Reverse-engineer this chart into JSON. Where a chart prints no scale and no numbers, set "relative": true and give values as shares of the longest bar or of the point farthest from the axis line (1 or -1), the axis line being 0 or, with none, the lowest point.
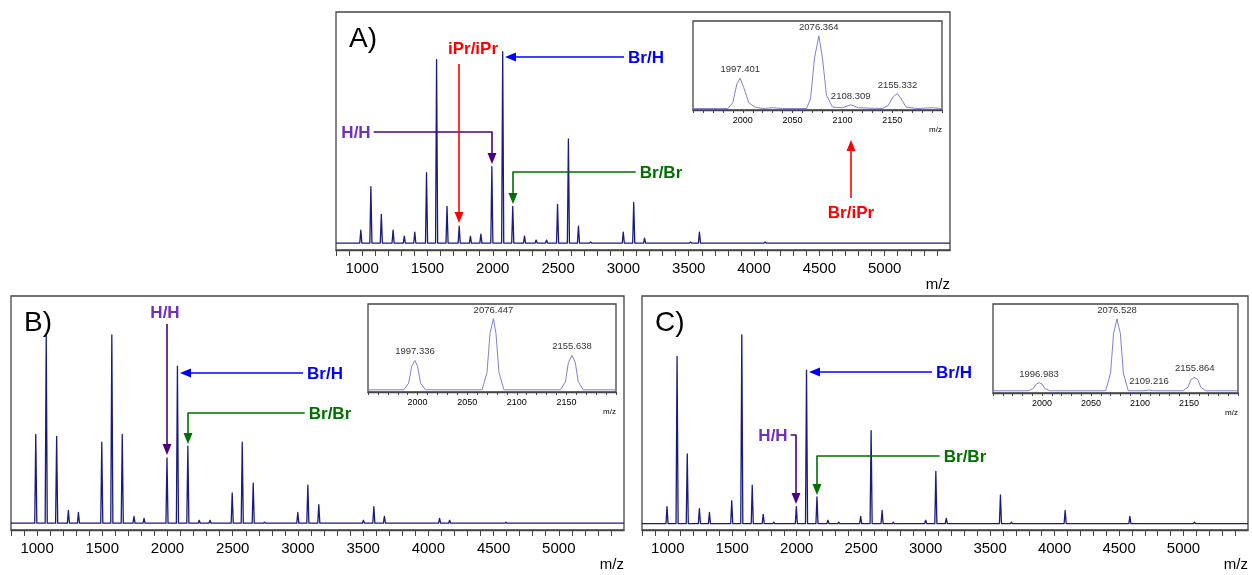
{
  "chart_data": [
    {
      "type": "line",
      "title": "A)",
      "xlabel": "m/z",
      "relative": true,
      "color": "#1a1a80",
      "xlim": [
        800,
        5500
      ],
      "xticks": [
        {
          "value": 800,
          "label": null
        },
        {
          "value": 900,
          "label": null
        },
        1000,
        {
          "value": 1100,
          "label": null
        },
        {
          "value": 1200,
          "label": null
        },
        {
          "value": 1300,
          "label": null
        },
        {
          "value": 1400,
          "label": null
        },
        1500,
        {
          "value": 1600,
          "label": null
        },
        {
          "value": 1700,
          "label": null
        },
        {
          "value": 1800,
          "label": null
        },
        {
          "value": 1900,
          "label": null
        },
        2000,
        {
          "value": 2100,
          "label": null
        },
        {
          "value": 2200,
          "label": null
        },
        {
          "value": 2300,
          "label": null
        },
        {
          "value": 2400,
          "label": null
        },
        2500,
        {
          "value": 2600,
          "label": null
        },
        {
          "value": 2700,
          "label": null
        },
        {
          "value": 2800,
          "label": null
        },
        {
          "value": 2900,
          "label": null
        },
        3000,
        {
          "value": 3100,
          "label": null
        },
        {
          "value": 3200,
          "label": null
        },
        {
          "value": 3300,
          "label": null
        },
        {
          "value": 3400,
          "label": null
        },
        3500,
        {
          "value": 3600,
          "label": null
        },
        {
          "value": 3700,
          "label": null
        },
        {
          "value": 3800,
          "label": null
        },
        {
          "value": 3900,
          "label": null
        },
        4000,
        {
          "value": 4100,
          "label": null
        },
        {
          "value": 4200,
          "label": null
        },
        {
          "value": 4300,
          "label": null
        },
        {
          "value": 4400,
          "label": null
        },
        4500,
        {
          "value": 4600,
          "label": null
        },
        {
          "value": 4700,
          "label": null
        },
        {
          "value": 4800,
          "label": null
        },
        {
          "value": 4900,
          "label": null
        },
        5000,
        {
          "value": 5100,
          "label": null
        },
        {
          "value": 5200,
          "label": null
        },
        {
          "value": 5300,
          "label": null
        },
        {
          "value": 5400,
          "label": null
        }
      ],
      "x": [
        800,
        982,
        990,
        998,
        1059,
        1067,
        1075,
        1139,
        1147,
        1155,
        1229,
        1237,
        1245,
        1315,
        1323,
        1331,
        1395,
        1403,
        1411,
        1485,
        1493,
        1501,
        1562,
        1570,
        1578,
        1642,
        1650,
        1658,
        1735,
        1743,
        1751,
        1821,
        1829,
        1837,
        1901,
        1909,
        1917,
        1985,
        1993,
        2001,
        2068,
        2076,
        2084,
        2145,
        2153,
        2161,
        2235,
        2243,
        2251,
        2324,
        2332,
        2340,
        2404,
        2412,
        2420,
        2488,
        2496,
        2504,
        2571,
        2579,
        2587,
        2648,
        2656,
        2664,
        2741,
        2749,
        2757,
        2991,
        2999,
        3007,
        3071,
        3079,
        3087,
        3154,
        3162,
        3170,
        3506,
        3514,
        3522,
        3574,
        3582,
        3590,
        4077,
        4085,
        4093,
        5500
      ],
      "values": [
        0.035,
        0.035,
        0.1,
        0.035,
        0.035,
        0.32,
        0.035,
        0.035,
        0.18,
        0.035,
        0.035,
        0.1,
        0.035,
        0.035,
        0.07,
        0.035,
        0.035,
        0.09,
        0.035,
        0.035,
        0.39,
        0.035,
        0.035,
        0.96,
        0.035,
        0.035,
        0.22,
        0.035,
        0.035,
        0.12,
        0.035,
        0.035,
        0.07,
        0.035,
        0.035,
        0.08,
        0.035,
        0.035,
        0.42,
        0.035,
        0.035,
        1,
        0.035,
        0.035,
        0.22,
        0.035,
        0.035,
        0.07,
        0.035,
        0.035,
        0.05,
        0.035,
        0.035,
        0.05,
        0.035,
        0.035,
        0.23,
        0.035,
        0.035,
        0.56,
        0.035,
        0.035,
        0.12,
        0.035,
        0.035,
        0.04,
        0.035,
        0.035,
        0.09,
        0.035,
        0.035,
        0.24,
        0.035,
        0.035,
        0.06,
        0.035,
        0.035,
        0.04,
        0.035,
        0.035,
        0.09,
        0.035,
        0.035,
        0.04,
        0.035,
        0.035
      ],
      "annotations": [
        "Br/H",
        "H/H",
        "iPr/iPr",
        "Br/Br"
      ]
    },
    {
      "type": "line",
      "xlabel": "m/z",
      "relative": true,
      "color": "#8080d0",
      "xlim": [
        1950,
        2200
      ],
      "xticks": [
        {
          "value": 1950,
          "label": null
        },
        {
          "value": 1960,
          "label": null
        },
        {
          "value": 1970,
          "label": null
        },
        {
          "value": 1980,
          "label": null
        },
        {
          "value": 1990,
          "label": null
        },
        2000,
        {
          "value": 2010,
          "label": null
        },
        {
          "value": 2020,
          "label": null
        },
        {
          "value": 2030,
          "label": null
        },
        {
          "value": 2040,
          "label": null
        },
        2050,
        {
          "value": 2060,
          "label": null
        },
        {
          "value": 2070,
          "label": null
        },
        {
          "value": 2080,
          "label": null
        },
        {
          "value": 2090,
          "label": null
        },
        2100,
        {
          "value": 2110,
          "label": null
        },
        {
          "value": 2120,
          "label": null
        },
        {
          "value": 2130,
          "label": null
        },
        {
          "value": 2140,
          "label": null
        },
        2150,
        {
          "value": 2160,
          "label": null
        },
        {
          "value": 2170,
          "label": null
        },
        {
          "value": 2180,
          "label": null
        },
        {
          "value": 2190,
          "label": null
        },
        {
          "value": 2200,
          "label": null
        }
      ],
      "x": [
        1950,
        1985,
        1990,
        1994,
        1997.401,
        2001,
        2006,
        2012,
        2020,
        2030,
        2040,
        2064,
        2068,
        2072,
        2076.364,
        2080,
        2084,
        2090,
        2100,
        2108.309,
        2116,
        2140,
        2146,
        2151,
        2155.332,
        2159,
        2164,
        2175,
        2190,
        2200
      ],
      "values": [
        0.02,
        0.02,
        0.1,
        0.35,
        0.43,
        0.3,
        0.1,
        0.04,
        0.02,
        0.03,
        0.02,
        0.02,
        0.15,
        0.7,
        1,
        0.7,
        0.2,
        0.04,
        0.03,
        0.07,
        0.03,
        0.02,
        0.06,
        0.18,
        0.22,
        0.15,
        0.04,
        0.02,
        0.03,
        0.02
      ],
      "annotations": [
        {
          "text": "1997.401",
          "x": 1997.401,
          "y": 0.43
        },
        {
          "text": "2076.364",
          "x": 2076.364,
          "y": 1
        },
        {
          "text": "2108.309",
          "x": 2108.309,
          "y": 0.07
        },
        {
          "text": "2155.332",
          "x": 2155.332,
          "y": 0.22
        },
        "Br/iPr"
      ]
    },
    {
      "type": "line",
      "title": "B)",
      "xlabel": "m/z",
      "relative": true,
      "color": "#1a1a80",
      "xlim": [
        800,
        5500
      ],
      "xticks": [
        {
          "value": 800,
          "label": null
        },
        {
          "value": 900,
          "label": null
        },
        1000,
        {
          "value": 1100,
          "label": null
        },
        {
          "value": 1200,
          "label": null
        },
        {
          "value": 1300,
          "label": null
        },
        {
          "value": 1400,
          "label": null
        },
        1500,
        {
          "value": 1600,
          "label": null
        },
        {
          "value": 1700,
          "label": null
        },
        {
          "value": 1800,
          "label": null
        },
        {
          "value": 1900,
          "label": null
        },
        2000,
        {
          "value": 2100,
          "label": null
        },
        {
          "value": 2200,
          "label": null
        },
        {
          "value": 2300,
          "label": null
        },
        {
          "value": 2400,
          "label": null
        },
        2500,
        {
          "value": 2600,
          "label": null
        },
        {
          "value": 2700,
          "label": null
        },
        {
          "value": 2800,
          "label": null
        },
        {
          "value": 2900,
          "label": null
        },
        3000,
        {
          "value": 3100,
          "label": null
        },
        {
          "value": 3200,
          "label": null
        },
        {
          "value": 3300,
          "label": null
        },
        {
          "value": 3400,
          "label": null
        },
        3500,
        {
          "value": 3600,
          "label": null
        },
        {
          "value": 3700,
          "label": null
        },
        {
          "value": 3800,
          "label": null
        },
        {
          "value": 3900,
          "label": null
        },
        4000,
        {
          "value": 4100,
          "label": null
        },
        {
          "value": 4200,
          "label": null
        },
        {
          "value": 4300,
          "label": null
        },
        {
          "value": 4400,
          "label": null
        },
        4500,
        {
          "value": 4600,
          "label": null
        },
        {
          "value": 4700,
          "label": null
        },
        {
          "value": 4800,
          "label": null
        },
        {
          "value": 4900,
          "label": null
        },
        5000,
        {
          "value": 5100,
          "label": null
        },
        {
          "value": 5200,
          "label": null
        },
        {
          "value": 5300,
          "label": null
        },
        {
          "value": 5400,
          "label": null
        }
      ],
      "x": [
        800,
        982,
        990,
        998,
        1062,
        1070,
        1078,
        1142,
        1150,
        1158,
        1232,
        1240,
        1248,
        1309,
        1317,
        1325,
        1488,
        1496,
        1504,
        1565,
        1573,
        1581,
        1645,
        1653,
        1661,
        1735,
        1743,
        1751,
        1812,
        1820,
        1828,
        1988,
        1996,
        2004,
        2068,
        2076,
        2084,
        2148,
        2156,
        2164,
        2235,
        2243,
        2251,
        2318,
        2326,
        2334,
        2488,
        2496,
        2504,
        2565,
        2573,
        2581,
        2649,
        2657,
        2665,
        2735,
        2743,
        2751,
        2991,
        2999,
        3007,
        3068,
        3076,
        3084,
        3152,
        3160,
        3168,
        3494,
        3502,
        3510,
        3574,
        3582,
        3590,
        3655,
        3663,
        3671,
        4078,
        4086,
        4094,
        4155,
        4163,
        4171,
        4587,
        4595,
        4603,
        5500
      ],
      "values": [
        0.035,
        0.035,
        0.49,
        0.035,
        0.035,
        1,
        0.035,
        0.035,
        0.48,
        0.035,
        0.035,
        0.1,
        0.035,
        0.035,
        0.09,
        0.035,
        0.035,
        0.45,
        0.035,
        0.035,
        1,
        0.035,
        0.035,
        0.49,
        0.035,
        0.035,
        0.07,
        0.035,
        0.035,
        0.06,
        0.035,
        0.035,
        0.37,
        0.035,
        0.035,
        0.84,
        0.035,
        0.035,
        0.43,
        0.035,
        0.035,
        0.05,
        0.035,
        0.035,
        0.05,
        0.035,
        0.035,
        0.19,
        0.035,
        0.035,
        0.45,
        0.035,
        0.035,
        0.24,
        0.035,
        0.035,
        0.04,
        0.035,
        0.035,
        0.09,
        0.035,
        0.035,
        0.23,
        0.035,
        0.035,
        0.13,
        0.035,
        0.035,
        0.05,
        0.035,
        0.035,
        0.12,
        0.035,
        0.035,
        0.07,
        0.035,
        0.035,
        0.06,
        0.035,
        0.035,
        0.05,
        0.035,
        0.035,
        0.04,
        0.035,
        0.035
      ],
      "annotations": [
        "H/H",
        "Br/H",
        "Br/Br"
      ]
    },
    {
      "type": "line",
      "xlabel": "m/z",
      "relative": true,
      "color": "#8080d0",
      "xlim": [
        1950,
        2200
      ],
      "xticks": [
        {
          "value": 1950,
          "label": null
        },
        {
          "value": 1960,
          "label": null
        },
        {
          "value": 1970,
          "label": null
        },
        {
          "value": 1980,
          "label": null
        },
        {
          "value": 1990,
          "label": null
        },
        2000,
        {
          "value": 2010,
          "label": null
        },
        {
          "value": 2020,
          "label": null
        },
        {
          "value": 2030,
          "label": null
        },
        {
          "value": 2040,
          "label": null
        },
        2050,
        {
          "value": 2060,
          "label": null
        },
        {
          "value": 2070,
          "label": null
        },
        {
          "value": 2080,
          "label": null
        },
        {
          "value": 2090,
          "label": null
        },
        2100,
        {
          "value": 2110,
          "label": null
        },
        {
          "value": 2120,
          "label": null
        },
        {
          "value": 2130,
          "label": null
        },
        {
          "value": 2140,
          "label": null
        },
        2150,
        {
          "value": 2160,
          "label": null
        },
        {
          "value": 2170,
          "label": null
        },
        {
          "value": 2180,
          "label": null
        },
        {
          "value": 2190,
          "label": null
        },
        {
          "value": 2200,
          "label": null
        }
      ],
      "x": [
        1950,
        1986,
        1991,
        1994,
        1997.336,
        2000,
        2003,
        2008,
        2065,
        2070,
        2073,
        2076.447,
        2079,
        2082,
        2087,
        2144,
        2149,
        2152,
        2155.638,
        2159,
        2162,
        2167,
        2200
      ],
      "values": [
        0.03,
        0.03,
        0.12,
        0.35,
        0.43,
        0.35,
        0.12,
        0.03,
        0.03,
        0.27,
        0.8,
        1,
        0.8,
        0.27,
        0.03,
        0.03,
        0.14,
        0.4,
        0.5,
        0.4,
        0.14,
        0.03,
        0.03
      ],
      "annotations": [
        {
          "text": "1997.336",
          "x": 1997.336,
          "y": 0.43
        },
        {
          "text": "2076.447",
          "x": 2076.447,
          "y": 1
        },
        {
          "text": "2155.638",
          "x": 2155.638,
          "y": 0.5
        }
      ]
    },
    {
      "type": "line",
      "title": "C)",
      "xlabel": "m/z",
      "relative": true,
      "color": "#1a1a80",
      "xlim": [
        800,
        5500
      ],
      "xticks": [
        {
          "value": 800,
          "label": null
        },
        {
          "value": 900,
          "label": null
        },
        1000,
        {
          "value": 1100,
          "label": null
        },
        {
          "value": 1200,
          "label": null
        },
        {
          "value": 1300,
          "label": null
        },
        {
          "value": 1400,
          "label": null
        },
        1500,
        {
          "value": 1600,
          "label": null
        },
        {
          "value": 1700,
          "label": null
        },
        {
          "value": 1800,
          "label": null
        },
        {
          "value": 1900,
          "label": null
        },
        2000,
        {
          "value": 2100,
          "label": null
        },
        {
          "value": 2200,
          "label": null
        },
        {
          "value": 2300,
          "label": null
        },
        {
          "value": 2400,
          "label": null
        },
        2500,
        {
          "value": 2600,
          "label": null
        },
        {
          "value": 2700,
          "label": null
        },
        {
          "value": 2800,
          "label": null
        },
        {
          "value": 2900,
          "label": null
        },
        3000,
        {
          "value": 3100,
          "label": null
        },
        {
          "value": 3200,
          "label": null
        },
        {
          "value": 3300,
          "label": null
        },
        {
          "value": 3400,
          "label": null
        },
        3500,
        {
          "value": 3600,
          "label": null
        },
        {
          "value": 3700,
          "label": null
        },
        {
          "value": 3800,
          "label": null
        },
        {
          "value": 3900,
          "label": null
        },
        4000,
        {
          "value": 4100,
          "label": null
        },
        {
          "value": 4200,
          "label": null
        },
        {
          "value": 4300,
          "label": null
        },
        {
          "value": 4400,
          "label": null
        },
        4500,
        {
          "value": 4600,
          "label": null
        },
        {
          "value": 4700,
          "label": null
        },
        {
          "value": 4800,
          "label": null
        },
        {
          "value": 4900,
          "label": null
        },
        5000,
        {
          "value": 5100,
          "label": null
        },
        {
          "value": 5200,
          "label": null
        },
        {
          "value": 5300,
          "label": null
        },
        {
          "value": 5400,
          "label": null
        }
      ],
      "x": [
        800,
        986,
        994,
        1002,
        1064,
        1072,
        1080,
        1143,
        1151,
        1159,
        1237,
        1245,
        1253,
        1315,
        1323,
        1331,
        1488,
        1496,
        1504,
        1566,
        1574,
        1582,
        1647,
        1655,
        1663,
        1732,
        1740,
        1748,
        1814,
        1822,
        1830,
        1989,
        1997,
        2005,
        2068,
        2076,
        2084,
        2149,
        2157,
        2165,
        2234,
        2242,
        2250,
        2318,
        2326,
        2334,
        2488,
        2496,
        2504,
        2569,
        2577,
        2585,
        2654,
        2662,
        2670,
        2741,
        2749,
        2757,
        2992,
        3000,
        3008,
        3071,
        3079,
        3087,
        3152,
        3160,
        3168,
        3572,
        3580,
        3588,
        3657,
        3665,
        3673,
        4074,
        4082,
        4090,
        4576,
        4584,
        4592,
        5077,
        5085,
        5093,
        5500
      ],
      "values": [
        0.033,
        0.033,
        0.12,
        0.033,
        0.033,
        0.89,
        0.033,
        0.033,
        0.39,
        0.033,
        0.033,
        0.11,
        0.033,
        0.033,
        0.09,
        0.033,
        0.033,
        0.15,
        0.033,
        0.033,
        1,
        0.033,
        0.033,
        0.23,
        0.033,
        0.033,
        0.08,
        0.033,
        0.033,
        0.04,
        0.033,
        0.033,
        0.12,
        0.033,
        0.033,
        0.82,
        0.033,
        0.033,
        0.17,
        0.033,
        0.033,
        0.05,
        0.033,
        0.033,
        0.04,
        0.033,
        0.033,
        0.07,
        0.033,
        0.033,
        0.51,
        0.033,
        0.033,
        0.1,
        0.033,
        0.033,
        0.04,
        0.033,
        0.033,
        0.05,
        0.033,
        0.033,
        0.3,
        0.033,
        0.033,
        0.06,
        0.033,
        0.033,
        0.18,
        0.033,
        0.033,
        0.04,
        0.033,
        0.033,
        0.1,
        0.033,
        0.033,
        0.07,
        0.033,
        0.033,
        0.04,
        0.033,
        0.033
      ],
      "annotations": [
        "Br/H",
        "H/H",
        "Br/Br"
      ]
    },
    {
      "type": "line",
      "xlabel": "m/z",
      "relative": true,
      "color": "#8080d0",
      "xlim": [
        1950,
        2200
      ],
      "xticks": [
        {
          "value": 1950,
          "label": null
        },
        {
          "value": 1960,
          "label": null
        },
        {
          "value": 1970,
          "label": null
        },
        {
          "value": 1980,
          "label": null
        },
        {
          "value": 1990,
          "label": null
        },
        2000,
        {
          "value": 2010,
          "label": null
        },
        {
          "value": 2020,
          "label": null
        },
        {
          "value": 2030,
          "label": null
        },
        {
          "value": 2040,
          "label": null
        },
        2050,
        {
          "value": 2060,
          "label": null
        },
        {
          "value": 2070,
          "label": null
        },
        {
          "value": 2080,
          "label": null
        },
        {
          "value": 2090,
          "label": null
        },
        2100,
        {
          "value": 2110,
          "label": null
        },
        {
          "value": 2120,
          "label": null
        },
        {
          "value": 2130,
          "label": null
        },
        {
          "value": 2140,
          "label": null
        },
        2150,
        {
          "value": 2160,
          "label": null
        },
        {
          "value": 2170,
          "label": null
        },
        {
          "value": 2180,
          "label": null
        },
        {
          "value": 2190,
          "label": null
        },
        {
          "value": 2200,
          "label": null
        }
      ],
      "x": [
        1950,
        1986,
        1991,
        1994,
        1996.983,
        2000,
        2003,
        2008,
        2065,
        2070,
        2073,
        2076.528,
        2080,
        2083,
        2088,
        2104,
        2109.216,
        2114,
        2144,
        2149,
        2152,
        2155.864,
        2159,
        2162,
        2167,
        2200
      ],
      "values": [
        0.03,
        0.03,
        0.06,
        0.12,
        0.14,
        0.12,
        0.06,
        0.03,
        0.03,
        0.27,
        0.8,
        1,
        0.8,
        0.27,
        0.03,
        0.03,
        0.04,
        0.03,
        0.03,
        0.08,
        0.18,
        0.21,
        0.18,
        0.08,
        0.03,
        0.03
      ],
      "annotations": [
        {
          "text": "1996.983",
          "x": 1996.983,
          "y": 0.14
        },
        {
          "text": "2076.528",
          "x": 2076.528,
          "y": 1
        },
        {
          "text": "2109.216",
          "x": 2109.216,
          "y": 0.04
        },
        {
          "text": "2155.864",
          "x": 2155.864,
          "y": 0.21
        }
      ]
    }
  ]
}
